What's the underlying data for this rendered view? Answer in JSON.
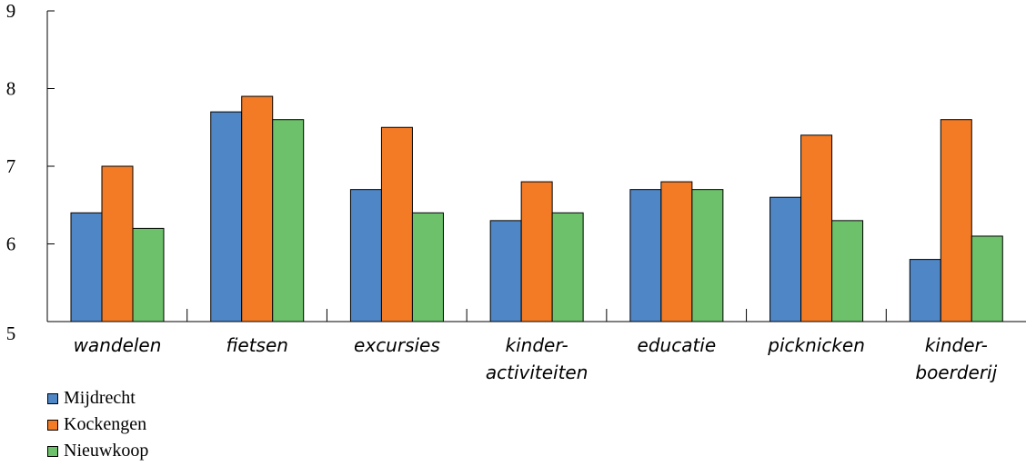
{
  "chart_data": {
    "type": "bar",
    "title": "",
    "xlabel": "",
    "ylabel": "",
    "ylim": [
      5,
      9
    ],
    "yticks": [
      "5",
      "6",
      "7",
      "8",
      "9"
    ],
    "categories": [
      [
        "wandelen"
      ],
      [
        "fietsen"
      ],
      [
        "excursies"
      ],
      [
        "kinder-",
        "activiteiten"
      ],
      [
        "educatie"
      ],
      [
        "picknicken"
      ],
      [
        "kinder-",
        "boerderij"
      ]
    ],
    "series": [
      {
        "name": "Mijdrecht",
        "color": "#4f86c6",
        "values": [
          6.4,
          7.7,
          6.7,
          6.3,
          6.7,
          6.6,
          5.8
        ]
      },
      {
        "name": "Kockengen",
        "color": "#f47b25",
        "values": [
          7.0,
          7.9,
          7.5,
          6.8,
          6.8,
          7.4,
          7.6
        ]
      },
      {
        "name": "Nieuwkoop",
        "color": "#6cc16a",
        "values": [
          6.2,
          7.6,
          6.4,
          6.4,
          6.7,
          6.3,
          6.1
        ]
      }
    ],
    "grid": false,
    "legend_position": "bottom-left"
  }
}
